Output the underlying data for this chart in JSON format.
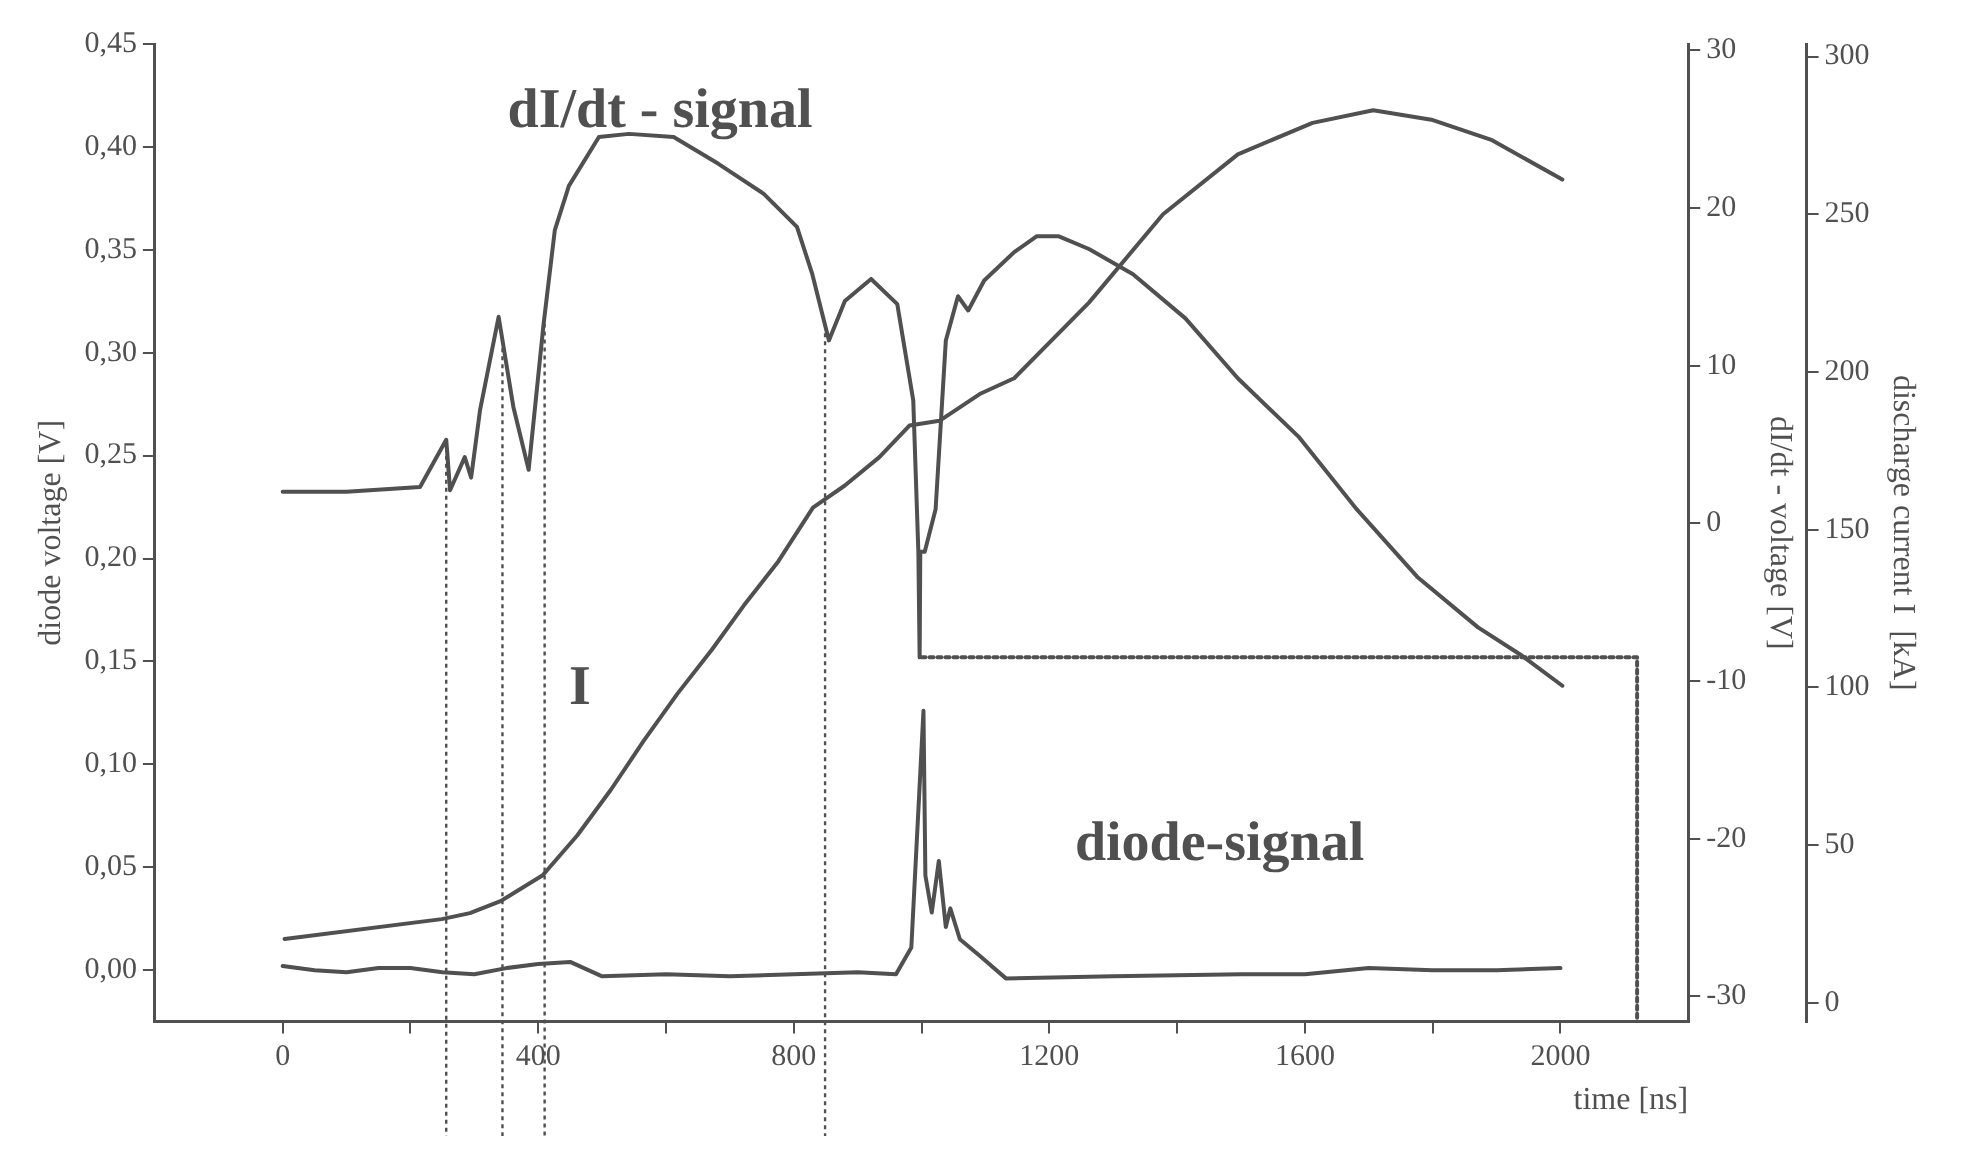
{
  "chart_data": {
    "type": "line",
    "xlabel": "time [ns]",
    "ylabel": "diode voltage [V]",
    "y2label": "dI/dt - voltage [V]",
    "y3label": "discharge current I  [kA]",
    "xlim": [
      -200,
      2200
    ],
    "xticks": [
      0,
      {
        "value": 200,
        "label": null
      },
      400,
      {
        "value": 600,
        "label": null
      },
      800,
      {
        "value": 1000,
        "label": null
      },
      1200,
      {
        "value": 1400,
        "label": null
      },
      1600,
      {
        "value": 1800,
        "label": null
      },
      2000
    ],
    "ylim": [
      -0.025,
      0.45
    ],
    "yticks": [
      {
        "value": 0,
        "label": "0,00"
      },
      {
        "value": 0.05,
        "label": "0,05"
      },
      {
        "value": 0.1,
        "label": "0,10"
      },
      {
        "value": 0.15,
        "label": "0,15"
      },
      {
        "value": 0.2,
        "label": "0,20"
      },
      {
        "value": 0.25,
        "label": "0,25"
      },
      {
        "value": 0.3,
        "label": "0,30"
      },
      {
        "value": 0.35,
        "label": "0,35"
      },
      {
        "value": 0.4,
        "label": "0,40"
      },
      {
        "value": 0.45,
        "label": "0,45"
      }
    ],
    "y2lim": [
      -31.6,
      30.4
    ],
    "y2ticks": [
      -30,
      -20,
      -10,
      0,
      10,
      20,
      30
    ],
    "y3lim": [
      -6,
      304
    ],
    "y3ticks": [
      0,
      50,
      100,
      150,
      200,
      250,
      300
    ],
    "grid": false,
    "legend": false,
    "marker": "none",
    "series": [
      {
        "name": "diode-signal",
        "color": "#505050",
        "x": [
          0,
          50,
          100,
          150,
          200,
          250,
          300,
          350,
          400,
          450,
          500,
          600,
          700,
          800,
          900,
          960,
          984,
          1003,
          1006,
          1016,
          1027,
          1038,
          1045,
          1060,
          1091,
          1132,
          1300,
          1500,
          1600,
          1700,
          1800,
          1900,
          2000
        ],
        "values": [
          0.002,
          0.0,
          -0.001,
          0.001,
          0.001,
          -0.001,
          -0.002,
          0.001,
          0.003,
          0.004,
          -0.003,
          -0.002,
          -0.003,
          -0.002,
          -0.001,
          -0.002,
          0.011,
          0.126,
          0.046,
          0.028,
          0.053,
          0.021,
          0.03,
          0.015,
          0.007,
          -0.004,
          -0.003,
          -0.002,
          -0.002,
          0.001,
          0.0,
          0.0,
          0.001
        ]
      },
      {
        "name": "dI/dt - signal",
        "color": "#505050",
        "axis": "y2",
        "x": [
          0,
          100,
          215,
          256,
          262,
          285,
          295,
          309,
          338,
          361,
          385,
          408,
          426,
          448,
          495,
          542,
          612,
          682,
          753,
          805,
          829,
          855,
          880,
          921,
          962,
          987,
          995,
          997,
          998,
          1005,
          1022,
          1038,
          1057,
          1073,
          1098,
          1145,
          1180,
          1215,
          1262,
          1331,
          1413,
          1495,
          1590,
          1681,
          1776,
          1871,
          1940,
          2003
        ],
        "values": [
          2.0,
          2.0,
          2.3,
          5.3,
          2.1,
          4.2,
          2.9,
          7.2,
          13.1,
          7.4,
          3.4,
          12.5,
          18.6,
          21.4,
          24.5,
          24.7,
          24.5,
          22.8,
          20.9,
          18.8,
          15.8,
          11.6,
          14.1,
          15.5,
          13.9,
          7.8,
          -1.8,
          -8.5,
          -1.8,
          -1.8,
          0.9,
          11.6,
          14.4,
          13.5,
          15.4,
          17.2,
          18.2,
          18.2,
          17.4,
          15.8,
          13.0,
          9.2,
          5.5,
          0.9,
          -3.4,
          -6.6,
          -8.4,
          -10.3
        ]
      },
      {
        "name": "I",
        "color": "#505050",
        "axis": "y3",
        "x": [
          3,
          249,
          293,
          341,
          407,
          461,
          514,
          565,
          618,
          672,
          722,
          776,
          830,
          880,
          934,
          981,
          1028,
          1091,
          1145,
          1262,
          1378,
          1495,
          1612,
          1707,
          1798,
          1893,
          2003
        ],
        "values": [
          20.2,
          26.5,
          28.4,
          32.2,
          40.4,
          53,
          67.6,
          83,
          98,
          112,
          126,
          140,
          157,
          164,
          173,
          183,
          184.5,
          193,
          198,
          222,
          250,
          269,
          279,
          283,
          280,
          273.5,
          261
        ]
      },
      {
        "color": "#505050",
        "axis": "y2",
        "line_style": "dotted",
        "x": [
          1000,
          2120,
          2120
        ],
        "values": [
          -8.5,
          -8.5,
          -31.6
        ]
      }
    ],
    "ref_lines": [
      {
        "axis": "x",
        "value": 256,
        "line_style": "dotted"
      },
      {
        "axis": "x",
        "value": 344,
        "line_style": "dotted"
      },
      {
        "axis": "x",
        "value": 410,
        "line_style": "dotted"
      },
      {
        "axis": "x",
        "value": 849,
        "line_style": "dotted"
      }
    ]
  }
}
